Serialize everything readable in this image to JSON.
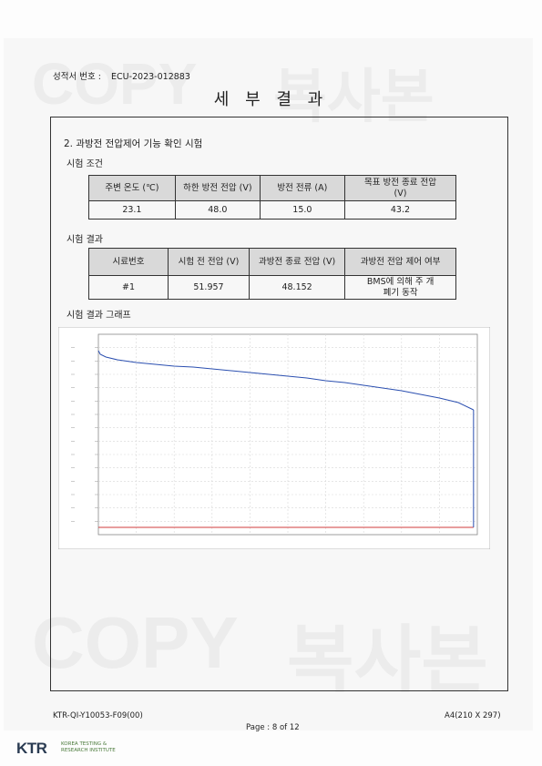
{
  "header": {
    "report_no_label": "성적서 번호 :",
    "report_no": "ECU-2023-012883",
    "title": "세 부 결 과"
  },
  "section": {
    "heading": "2. 과방전 전압제어 기능 확인 시험",
    "conditions_label": "시험 조건",
    "conditions_table": {
      "headers": [
        "주변 온도 (℃)",
        "하한 방전 전압 (V)",
        "방전 전류 (A)",
        "목표 방전 종료 전압 (V)"
      ],
      "row": [
        "23.1",
        "48.0",
        "15.0",
        "43.2"
      ]
    },
    "results_label": "시험 결과",
    "results_table": {
      "headers": [
        "시료번호",
        "시험 전 전압 (V)",
        "과방전 종료 전압 (V)",
        "과방전 전압 제어 여부"
      ],
      "row": [
        "#1",
        "51.957",
        "48.152",
        "BMS에 의해 주 개폐기 동작"
      ]
    },
    "graph_label": "시험 결과 그래프"
  },
  "chart_data": {
    "type": "line",
    "title": "",
    "xlabel": "",
    "ylabel": "",
    "series": [
      {
        "color": "#2b4fb0",
        "points": [
          [
            0.0,
            51.6
          ],
          [
            0.5,
            51.4
          ],
          [
            2,
            51.25
          ],
          [
            5,
            51.1
          ],
          [
            10,
            50.95
          ],
          [
            15,
            50.85
          ],
          [
            20,
            50.75
          ],
          [
            25,
            50.7
          ],
          [
            30,
            50.6
          ],
          [
            35,
            50.5
          ],
          [
            40,
            50.4
          ],
          [
            45,
            50.3
          ],
          [
            50,
            50.2
          ],
          [
            55,
            50.1
          ],
          [
            60,
            49.95
          ],
          [
            65,
            49.85
          ],
          [
            70,
            49.7
          ],
          [
            75,
            49.55
          ],
          [
            80,
            49.4
          ],
          [
            85,
            49.2
          ],
          [
            90,
            49.0
          ],
          [
            95,
            48.75
          ],
          [
            99,
            48.35
          ]
        ]
      },
      {
        "color": "#d23c3c",
        "points": [
          [
            0.0,
            41.9
          ],
          [
            99,
            41.9
          ]
        ]
      }
    ],
    "drop": {
      "x": 99,
      "from": 48.35,
      "to": 41.9
    },
    "x_grid_count": 10,
    "y_grid_count": 15,
    "grid": true
  },
  "watermarks": [
    "COPY",
    "복사본",
    "COPY",
    "복사본"
  ],
  "footer": {
    "form_no": "KTR-QI-Y10053-F09(00)",
    "paper": "A4(210 X 297)",
    "page": "Page : 8 of 12",
    "logo_abbrev": "KTR",
    "logo_line1": "KOREA TESTING &",
    "logo_line2": "RESEARCH INSTITUTE"
  }
}
